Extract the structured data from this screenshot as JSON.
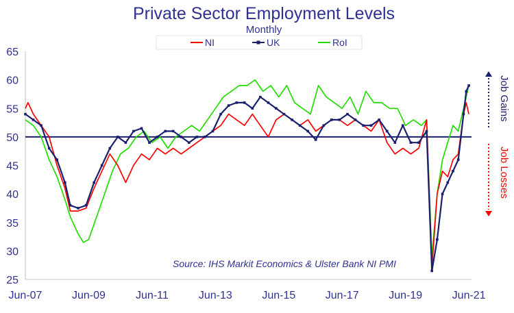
{
  "chart_data": {
    "type": "line",
    "title": "Private Sector Employment Levels",
    "subtitle": "Monthly",
    "ylim": [
      25,
      65
    ],
    "yticks": [
      25,
      30,
      35,
      40,
      45,
      50,
      55,
      60,
      65
    ],
    "reference_line": 50,
    "x_range": [
      "2007-06",
      "2021-07"
    ],
    "xticks": [
      "Jun-07",
      "Jun-09",
      "Jun-11",
      "Jun-13",
      "Jun-15",
      "Jun-17",
      "Jun-19",
      "Jun-21"
    ],
    "xtick_dates": [
      "2007-06",
      "2009-06",
      "2011-06",
      "2013-06",
      "2015-06",
      "2017-06",
      "2019-06",
      "2021-06"
    ],
    "legend_position": "top",
    "grid": false,
    "source": "Source: IHS Markit Economics & Ulster Bank NI PMI",
    "side_labels": {
      "gains": "Job Gains",
      "losses": "Job Losses"
    },
    "colors": {
      "NI": "#ff0000",
      "UK": "#1a1f6e",
      "RoI": "#22dd00",
      "text": "#2e3192"
    },
    "series": [
      {
        "name": "NI",
        "points": [
          [
            "2007-06",
            55
          ],
          [
            "2007-07",
            56
          ],
          [
            "2007-09",
            54
          ],
          [
            "2007-12",
            52
          ],
          [
            "2008-03",
            50
          ],
          [
            "2008-06",
            45
          ],
          [
            "2008-09",
            41
          ],
          [
            "2008-11",
            37
          ],
          [
            "2009-02",
            37
          ],
          [
            "2009-05",
            37.5
          ],
          [
            "2009-08",
            41
          ],
          [
            "2009-11",
            44
          ],
          [
            "2010-02",
            47
          ],
          [
            "2010-05",
            45
          ],
          [
            "2010-08",
            42
          ],
          [
            "2010-11",
            45
          ],
          [
            "2011-02",
            47
          ],
          [
            "2011-05",
            46
          ],
          [
            "2011-08",
            48
          ],
          [
            "2011-11",
            47
          ],
          [
            "2012-02",
            48
          ],
          [
            "2012-05",
            47
          ],
          [
            "2012-08",
            48
          ],
          [
            "2012-11",
            49
          ],
          [
            "2013-02",
            50
          ],
          [
            "2013-05",
            51
          ],
          [
            "2013-08",
            52
          ],
          [
            "2013-11",
            54
          ],
          [
            "2014-02",
            53
          ],
          [
            "2014-05",
            52
          ],
          [
            "2014-08",
            54
          ],
          [
            "2014-11",
            52
          ],
          [
            "2015-02",
            50
          ],
          [
            "2015-05",
            53
          ],
          [
            "2015-08",
            54
          ],
          [
            "2015-11",
            53
          ],
          [
            "2016-02",
            52
          ],
          [
            "2016-05",
            53
          ],
          [
            "2016-08",
            51
          ],
          [
            "2016-11",
            52
          ],
          [
            "2017-02",
            53
          ],
          [
            "2017-05",
            53
          ],
          [
            "2017-08",
            52
          ],
          [
            "2017-11",
            53
          ],
          [
            "2018-02",
            52
          ],
          [
            "2018-05",
            51
          ],
          [
            "2018-08",
            53
          ],
          [
            "2018-11",
            49
          ],
          [
            "2019-02",
            47
          ],
          [
            "2019-05",
            48
          ],
          [
            "2019-08",
            47
          ],
          [
            "2019-11",
            48
          ],
          [
            "2020-02",
            53
          ],
          [
            "2020-04",
            27
          ],
          [
            "2020-06",
            40
          ],
          [
            "2020-08",
            44
          ],
          [
            "2020-10",
            43
          ],
          [
            "2020-12",
            46
          ],
          [
            "2021-02",
            47
          ],
          [
            "2021-04",
            54
          ],
          [
            "2021-05",
            56
          ],
          [
            "2021-06",
            54
          ]
        ]
      },
      {
        "name": "UK",
        "points": [
          [
            "2007-06",
            54
          ],
          [
            "2007-09",
            53
          ],
          [
            "2007-12",
            52
          ],
          [
            "2008-03",
            48
          ],
          [
            "2008-06",
            46
          ],
          [
            "2008-09",
            42
          ],
          [
            "2008-11",
            38
          ],
          [
            "2009-02",
            37.5
          ],
          [
            "2009-05",
            38
          ],
          [
            "2009-08",
            42
          ],
          [
            "2009-11",
            45
          ],
          [
            "2010-02",
            48
          ],
          [
            "2010-05",
            50
          ],
          [
            "2010-08",
            49
          ],
          [
            "2010-11",
            51
          ],
          [
            "2011-02",
            51.5
          ],
          [
            "2011-05",
            49
          ],
          [
            "2011-08",
            50
          ],
          [
            "2011-11",
            51
          ],
          [
            "2012-02",
            51
          ],
          [
            "2012-05",
            50
          ],
          [
            "2012-08",
            49
          ],
          [
            "2012-11",
            50
          ],
          [
            "2013-02",
            50
          ],
          [
            "2013-05",
            51
          ],
          [
            "2013-08",
            54
          ],
          [
            "2013-11",
            55.5
          ],
          [
            "2014-02",
            56
          ],
          [
            "2014-05",
            56
          ],
          [
            "2014-08",
            55
          ],
          [
            "2014-11",
            57
          ],
          [
            "2015-02",
            56
          ],
          [
            "2015-05",
            55
          ],
          [
            "2015-08",
            54
          ],
          [
            "2015-11",
            53
          ],
          [
            "2016-02",
            52
          ],
          [
            "2016-05",
            51
          ],
          [
            "2016-08",
            49.5
          ],
          [
            "2016-11",
            52
          ],
          [
            "2017-02",
            53
          ],
          [
            "2017-05",
            53
          ],
          [
            "2017-08",
            54
          ],
          [
            "2017-11",
            53
          ],
          [
            "2018-02",
            52
          ],
          [
            "2018-05",
            52
          ],
          [
            "2018-08",
            53
          ],
          [
            "2018-11",
            51
          ],
          [
            "2019-02",
            49
          ],
          [
            "2019-05",
            52
          ],
          [
            "2019-08",
            49
          ],
          [
            "2019-11",
            49
          ],
          [
            "2020-02",
            51
          ],
          [
            "2020-04",
            26.5
          ],
          [
            "2020-06",
            32
          ],
          [
            "2020-08",
            40
          ],
          [
            "2020-10",
            42
          ],
          [
            "2020-12",
            44
          ],
          [
            "2021-02",
            46
          ],
          [
            "2021-04",
            54
          ],
          [
            "2021-05",
            58
          ],
          [
            "2021-06",
            59
          ]
        ]
      },
      {
        "name": "RoI",
        "points": [
          [
            "2007-06",
            53
          ],
          [
            "2007-09",
            52
          ],
          [
            "2007-12",
            50
          ],
          [
            "2008-03",
            46
          ],
          [
            "2008-06",
            43
          ],
          [
            "2008-09",
            39
          ],
          [
            "2008-11",
            36
          ],
          [
            "2009-02",
            33
          ],
          [
            "2009-04",
            31.5
          ],
          [
            "2009-06",
            32
          ],
          [
            "2009-09",
            36
          ],
          [
            "2009-12",
            40
          ],
          [
            "2010-03",
            44
          ],
          [
            "2010-06",
            47
          ],
          [
            "2010-09",
            48
          ],
          [
            "2010-12",
            50
          ],
          [
            "2011-03",
            51
          ],
          [
            "2011-06",
            49
          ],
          [
            "2011-09",
            50
          ],
          [
            "2011-12",
            48
          ],
          [
            "2012-03",
            50
          ],
          [
            "2012-06",
            51
          ],
          [
            "2012-09",
            52
          ],
          [
            "2012-12",
            51
          ],
          [
            "2013-03",
            53
          ],
          [
            "2013-06",
            55
          ],
          [
            "2013-09",
            57
          ],
          [
            "2013-12",
            58
          ],
          [
            "2014-03",
            59
          ],
          [
            "2014-06",
            59
          ],
          [
            "2014-09",
            60
          ],
          [
            "2014-12",
            58
          ],
          [
            "2015-03",
            59
          ],
          [
            "2015-06",
            57
          ],
          [
            "2015-09",
            59
          ],
          [
            "2015-12",
            56
          ],
          [
            "2016-03",
            55
          ],
          [
            "2016-06",
            54
          ],
          [
            "2016-09",
            59
          ],
          [
            "2016-12",
            57
          ],
          [
            "2017-03",
            56
          ],
          [
            "2017-06",
            55
          ],
          [
            "2017-09",
            57
          ],
          [
            "2017-12",
            54
          ],
          [
            "2018-03",
            58
          ],
          [
            "2018-06",
            56
          ],
          [
            "2018-09",
            56
          ],
          [
            "2018-12",
            55
          ],
          [
            "2019-03",
            55
          ],
          [
            "2019-06",
            52
          ],
          [
            "2019-09",
            53
          ],
          [
            "2019-12",
            52
          ],
          [
            "2020-02",
            53
          ],
          [
            "2020-04",
            29
          ],
          [
            "2020-06",
            40
          ],
          [
            "2020-08",
            46
          ],
          [
            "2020-10",
            49
          ],
          [
            "2020-12",
            52
          ],
          [
            "2021-02",
            51
          ],
          [
            "2021-04",
            55
          ],
          [
            "2021-05",
            57
          ],
          [
            "2021-06",
            59
          ]
        ]
      }
    ]
  }
}
